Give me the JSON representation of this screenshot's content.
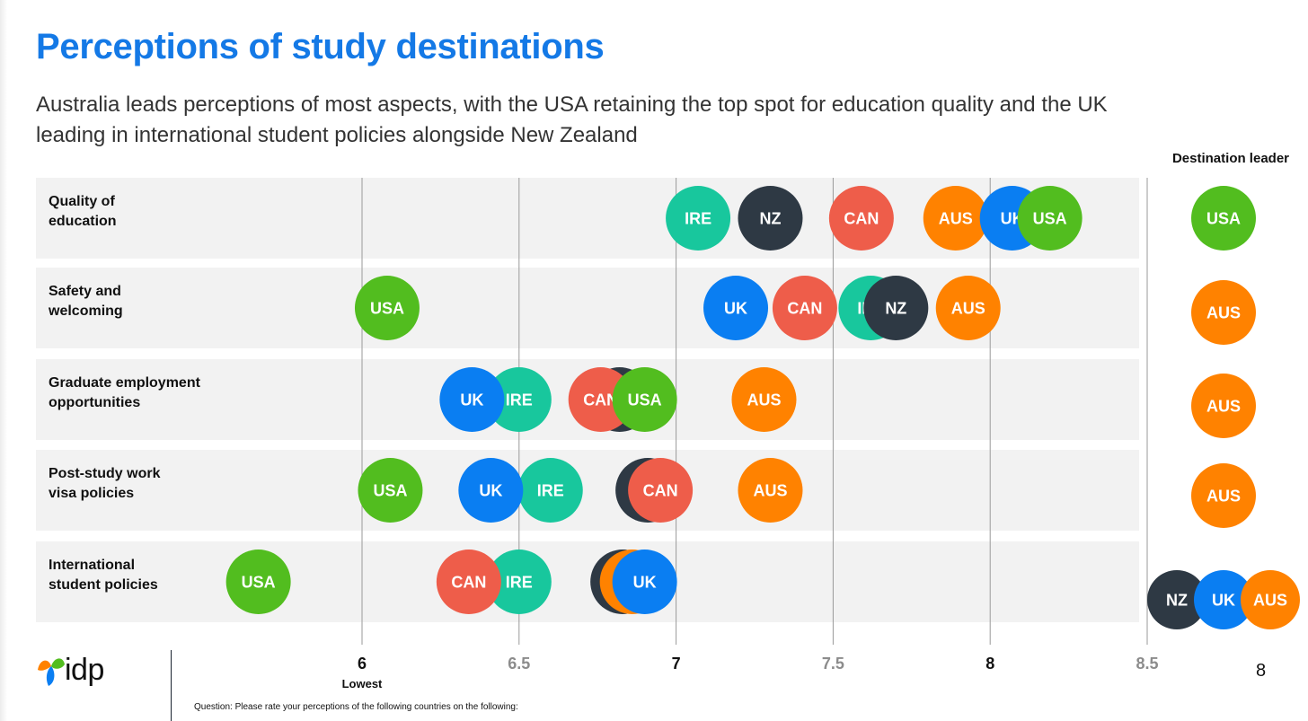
{
  "title": "Perceptions of study destinations",
  "subtitle": "Australia leads perceptions of most aspects, with the USA retaining the top spot for education quality and the UK leading in international student policies alongside New Zealand",
  "leader_heading": "Destination leader",
  "logo_text": "idp",
  "question": "Question: Please rate your perceptions of the following countries on the following:",
  "page_number": "8",
  "colors": {
    "USA": "#52bd1f",
    "AUS": "#ff8200",
    "UK": "#0a7ef2",
    "NZ": "#2e3944",
    "CAN": "#ee5d4a",
    "IRE": "#18c79d"
  },
  "chart_data": {
    "type": "scatter",
    "x_ticks": [
      {
        "value": 6,
        "label": "6",
        "sublabel": "Lowest",
        "bold": true
      },
      {
        "value": 6.5,
        "label": "6.5",
        "bold": false
      },
      {
        "value": 7,
        "label": "7",
        "bold": true
      },
      {
        "value": 7.5,
        "label": "7.5",
        "bold": false
      },
      {
        "value": 8,
        "label": "8",
        "bold": true
      },
      {
        "value": 8.5,
        "label": "8.5",
        "bold": false
      }
    ],
    "xlim": [
      6,
      8.5
    ],
    "grid": true,
    "categories": [
      "Quality of\neducation",
      "Safety and\nwelcoming",
      "Graduate employment\nopportunities",
      "Post-study work\nvisa policies",
      "International\nstudent policies"
    ],
    "series": [
      {
        "name": "IRE",
        "values": [
          7.07,
          7.62,
          6.5,
          6.6,
          6.5
        ]
      },
      {
        "name": "NZ",
        "values": [
          7.3,
          7.7,
          6.82,
          6.91,
          6.83
        ]
      },
      {
        "name": "CAN",
        "values": [
          7.59,
          7.41,
          6.76,
          6.95,
          6.34
        ]
      },
      {
        "name": "AUS",
        "values": [
          7.89,
          7.93,
          7.28,
          7.3,
          6.86
        ]
      },
      {
        "name": "UK",
        "values": [
          8.07,
          7.19,
          6.35,
          6.41,
          6.9
        ]
      },
      {
        "name": "USA",
        "values": [
          8.19,
          6.08,
          6.9,
          6.09,
          5.67
        ]
      }
    ],
    "leaders": [
      [
        "USA"
      ],
      [
        "AUS"
      ],
      [
        "AUS"
      ],
      [
        "AUS"
      ],
      [
        "NZ",
        "UK",
        "AUS"
      ]
    ]
  }
}
